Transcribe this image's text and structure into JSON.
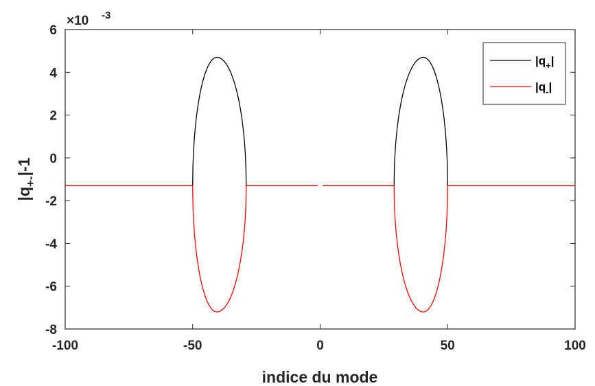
{
  "chart_data": {
    "type": "line",
    "xlabel": "indice du mode",
    "ylabel_main": "|q",
    "ylabel_sub": "+-",
    "ylabel_end": "|-1",
    "exponent_prefix": "×10",
    "exponent_power": "-3",
    "xlim": [
      -100,
      100
    ],
    "ylim": [
      -8,
      6
    ],
    "xticks": [
      -100,
      -50,
      0,
      50,
      100
    ],
    "yticks": [
      -8,
      -6,
      -4,
      -2,
      0,
      2,
      4,
      6
    ],
    "xtick_labels": [
      "-100",
      "-50",
      "0",
      "50",
      "100"
    ],
    "ytick_labels": [
      "-8",
      "-6",
      "-4",
      "-2",
      "0",
      "2",
      "4",
      "6"
    ],
    "baseline": -1.3,
    "gap": [
      -1,
      1
    ],
    "lobes": [
      {
        "x_start": -50,
        "x_end": -29,
        "x_peak": -40.5,
        "upper_peak": 4.7,
        "lower_peak": -7.2
      },
      {
        "x_start": 29,
        "x_end": 50,
        "x_peak": 40.5,
        "upper_peak": 4.7,
        "lower_peak": -7.2
      }
    ],
    "series": [
      {
        "label_main": "|q",
        "label_sub": "+",
        "label_end": "|",
        "color": "#000000"
      },
      {
        "label_main": "|q",
        "label_sub": "-",
        "label_end": "|",
        "color": "#ff0000"
      }
    ],
    "legend_position": "top-right",
    "grid": false
  }
}
